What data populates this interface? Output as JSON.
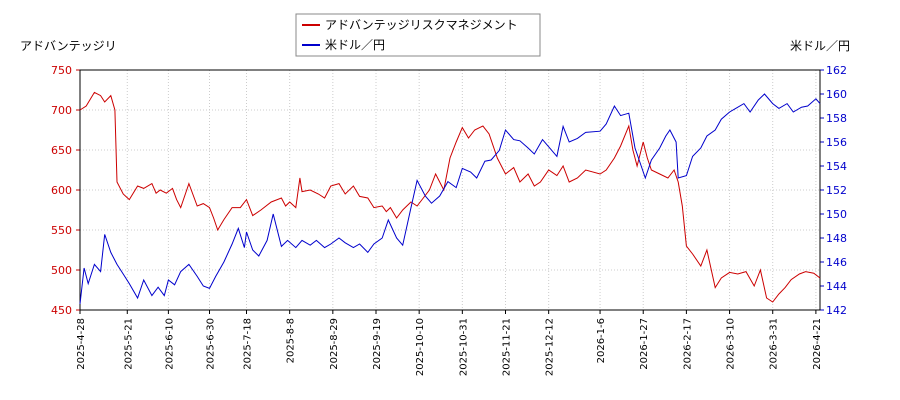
{
  "chart_data": {
    "type": "line",
    "legend": {
      "placement": "top-center",
      "entries": [
        {
          "label": "アドバンテッジリスクマネジメント",
          "color": "#cc0000"
        },
        {
          "label": "米ドル／円",
          "color": "#0000cc"
        }
      ]
    },
    "left_axis": {
      "label": "アドバンテッジリ",
      "ylim": [
        450,
        750
      ],
      "ticks": [
        450,
        500,
        550,
        600,
        650,
        700,
        750
      ],
      "color": "#cc0000"
    },
    "right_axis": {
      "label": "米ドル／円",
      "ylim": [
        142,
        162
      ],
      "ticks": [
        142,
        144,
        146,
        148,
        150,
        152,
        154,
        156,
        158,
        160,
        162
      ],
      "color": "#0000cc"
    },
    "x_axis": {
      "range": [
        "2025-04-28",
        "2026-04-23"
      ],
      "ticks": [
        "2025-4-28",
        "2025-5-21",
        "2025-6-10",
        "2025-6-30",
        "2025-7-18",
        "2025-8-8",
        "2025-8-29",
        "2025-9-19",
        "2025-10-10",
        "2025-10-31",
        "2025-11-21",
        "2025-12-12",
        "2026-1-6",
        "2026-1-27",
        "2026-2-17",
        "2026-3-10",
        "2026-3-31",
        "2026-4-21"
      ]
    },
    "grid": true,
    "series": [
      {
        "name": "アドバンテッジリスクマネジメント",
        "color": "#cc0000",
        "axis": "left",
        "points": [
          [
            "2025-04-28",
            700
          ],
          [
            "2025-05-01",
            705
          ],
          [
            "2025-05-05",
            722
          ],
          [
            "2025-05-08",
            718
          ],
          [
            "2025-05-10",
            710
          ],
          [
            "2025-05-13",
            718
          ],
          [
            "2025-05-15",
            700
          ],
          [
            "2025-05-16",
            610
          ],
          [
            "2025-05-19",
            595
          ],
          [
            "2025-05-22",
            588
          ],
          [
            "2025-05-26",
            605
          ],
          [
            "2025-05-29",
            602
          ],
          [
            "2025-06-02",
            608
          ],
          [
            "2025-06-04",
            596
          ],
          [
            "2025-06-06",
            600
          ],
          [
            "2025-06-09",
            596
          ],
          [
            "2025-06-12",
            602
          ],
          [
            "2025-06-14",
            588
          ],
          [
            "2025-06-16",
            578
          ],
          [
            "2025-06-20",
            608
          ],
          [
            "2025-06-24",
            580
          ],
          [
            "2025-06-27",
            583
          ],
          [
            "2025-06-30",
            578
          ],
          [
            "2025-07-02",
            565
          ],
          [
            "2025-07-04",
            550
          ],
          [
            "2025-07-07",
            563
          ],
          [
            "2025-07-11",
            578
          ],
          [
            "2025-07-15",
            578
          ],
          [
            "2025-07-18",
            588
          ],
          [
            "2025-07-21",
            568
          ],
          [
            "2025-07-25",
            575
          ],
          [
            "2025-07-30",
            585
          ],
          [
            "2025-08-04",
            590
          ],
          [
            "2025-08-06",
            580
          ],
          [
            "2025-08-08",
            585
          ],
          [
            "2025-08-11",
            578
          ],
          [
            "2025-08-13",
            615
          ],
          [
            "2025-08-14",
            598
          ],
          [
            "2025-08-18",
            600
          ],
          [
            "2025-08-22",
            595
          ],
          [
            "2025-08-25",
            590
          ],
          [
            "2025-08-28",
            605
          ],
          [
            "2025-09-01",
            608
          ],
          [
            "2025-09-04",
            595
          ],
          [
            "2025-09-08",
            605
          ],
          [
            "2025-09-11",
            592
          ],
          [
            "2025-09-15",
            590
          ],
          [
            "2025-09-18",
            578
          ],
          [
            "2025-09-22",
            580
          ],
          [
            "2025-09-24",
            573
          ],
          [
            "2025-09-26",
            578
          ],
          [
            "2025-09-29",
            565
          ],
          [
            "2025-10-02",
            575
          ],
          [
            "2025-10-06",
            585
          ],
          [
            "2025-10-09",
            580
          ],
          [
            "2025-10-12",
            590
          ],
          [
            "2025-10-15",
            600
          ],
          [
            "2025-10-18",
            620
          ],
          [
            "2025-10-22",
            600
          ],
          [
            "2025-10-25",
            640
          ],
          [
            "2025-10-28",
            660
          ],
          [
            "2025-10-31",
            678
          ],
          [
            "2025-11-03",
            665
          ],
          [
            "2025-11-06",
            675
          ],
          [
            "2025-11-10",
            680
          ],
          [
            "2025-11-13",
            670
          ],
          [
            "2025-11-17",
            640
          ],
          [
            "2025-11-21",
            620
          ],
          [
            "2025-11-25",
            628
          ],
          [
            "2025-11-28",
            610
          ],
          [
            "2025-12-02",
            620
          ],
          [
            "2025-12-05",
            605
          ],
          [
            "2025-12-08",
            610
          ],
          [
            "2025-12-12",
            625
          ],
          [
            "2025-12-16",
            618
          ],
          [
            "2025-12-19",
            630
          ],
          [
            "2025-12-22",
            610
          ],
          [
            "2025-12-26",
            615
          ],
          [
            "2025-12-30",
            625
          ],
          [
            "2026-01-06",
            620
          ],
          [
            "2026-01-09",
            625
          ],
          [
            "2026-01-13",
            640
          ],
          [
            "2026-01-16",
            655
          ],
          [
            "2026-01-20",
            680
          ],
          [
            "2026-01-22",
            650
          ],
          [
            "2026-01-24",
            630
          ],
          [
            "2026-01-27",
            660
          ],
          [
            "2026-01-29",
            640
          ],
          [
            "2026-01-31",
            625
          ],
          [
            "2026-02-04",
            620
          ],
          [
            "2026-02-08",
            615
          ],
          [
            "2026-02-11",
            625
          ],
          [
            "2026-02-13",
            610
          ],
          [
            "2026-02-15",
            580
          ],
          [
            "2026-02-17",
            530
          ],
          [
            "2026-02-20",
            520
          ],
          [
            "2026-02-24",
            505
          ],
          [
            "2026-02-27",
            525
          ],
          [
            "2026-03-03",
            478
          ],
          [
            "2026-03-06",
            490
          ],
          [
            "2026-03-10",
            497
          ],
          [
            "2026-03-14",
            495
          ],
          [
            "2026-03-18",
            498
          ],
          [
            "2026-03-22",
            480
          ],
          [
            "2026-03-25",
            500
          ],
          [
            "2026-03-28",
            465
          ],
          [
            "2026-03-31",
            460
          ],
          [
            "2026-04-03",
            470
          ],
          [
            "2026-04-06",
            478
          ],
          [
            "2026-04-09",
            488
          ],
          [
            "2026-04-13",
            495
          ],
          [
            "2026-04-16",
            498
          ],
          [
            "2026-04-20",
            496
          ],
          [
            "2026-04-23",
            490
          ]
        ]
      },
      {
        "name": "米ドル／円",
        "color": "#0000cc",
        "axis": "right",
        "points": [
          [
            "2025-04-28",
            142.5
          ],
          [
            "2025-04-30",
            145.5
          ],
          [
            "2025-05-02",
            144.2
          ],
          [
            "2025-05-05",
            145.8
          ],
          [
            "2025-05-08",
            145.2
          ],
          [
            "2025-05-10",
            148.3
          ],
          [
            "2025-05-13",
            146.8
          ],
          [
            "2025-05-16",
            145.8
          ],
          [
            "2025-05-19",
            145.0
          ],
          [
            "2025-05-22",
            144.2
          ],
          [
            "2025-05-26",
            143.0
          ],
          [
            "2025-05-29",
            144.5
          ],
          [
            "2025-06-02",
            143.2
          ],
          [
            "2025-06-05",
            143.9
          ],
          [
            "2025-06-08",
            143.2
          ],
          [
            "2025-06-10",
            144.5
          ],
          [
            "2025-06-13",
            144.1
          ],
          [
            "2025-06-16",
            145.2
          ],
          [
            "2025-06-20",
            145.8
          ],
          [
            "2025-06-24",
            144.8
          ],
          [
            "2025-06-27",
            144.0
          ],
          [
            "2025-06-30",
            143.8
          ],
          [
            "2025-07-03",
            144.8
          ],
          [
            "2025-07-07",
            146.0
          ],
          [
            "2025-07-11",
            147.5
          ],
          [
            "2025-07-14",
            148.8
          ],
          [
            "2025-07-17",
            147.2
          ],
          [
            "2025-07-18",
            148.5
          ],
          [
            "2025-07-21",
            147.0
          ],
          [
            "2025-07-24",
            146.5
          ],
          [
            "2025-07-28",
            147.8
          ],
          [
            "2025-07-31",
            150.0
          ],
          [
            "2025-08-04",
            147.3
          ],
          [
            "2025-08-07",
            147.8
          ],
          [
            "2025-08-11",
            147.2
          ],
          [
            "2025-08-14",
            147.8
          ],
          [
            "2025-08-18",
            147.4
          ],
          [
            "2025-08-21",
            147.8
          ],
          [
            "2025-08-25",
            147.2
          ],
          [
            "2025-08-28",
            147.5
          ],
          [
            "2025-09-01",
            148.0
          ],
          [
            "2025-09-04",
            147.6
          ],
          [
            "2025-09-08",
            147.2
          ],
          [
            "2025-09-11",
            147.5
          ],
          [
            "2025-09-15",
            146.8
          ],
          [
            "2025-09-18",
            147.5
          ],
          [
            "2025-09-22",
            148.0
          ],
          [
            "2025-09-25",
            149.5
          ],
          [
            "2025-09-29",
            148.0
          ],
          [
            "2025-10-02",
            147.4
          ],
          [
            "2025-10-06",
            150.5
          ],
          [
            "2025-10-09",
            152.8
          ],
          [
            "2025-10-13",
            151.5
          ],
          [
            "2025-10-16",
            150.9
          ],
          [
            "2025-10-20",
            151.5
          ],
          [
            "2025-10-24",
            152.7
          ],
          [
            "2025-10-28",
            152.2
          ],
          [
            "2025-10-31",
            153.8
          ],
          [
            "2025-11-04",
            153.5
          ],
          [
            "2025-11-07",
            153.0
          ],
          [
            "2025-11-11",
            154.4
          ],
          [
            "2025-11-14",
            154.5
          ],
          [
            "2025-11-18",
            155.3
          ],
          [
            "2025-11-21",
            157.0
          ],
          [
            "2025-11-25",
            156.2
          ],
          [
            "2025-11-28",
            156.1
          ],
          [
            "2025-12-02",
            155.5
          ],
          [
            "2025-12-05",
            155.0
          ],
          [
            "2025-12-09",
            156.2
          ],
          [
            "2025-12-12",
            155.6
          ],
          [
            "2025-12-16",
            154.8
          ],
          [
            "2025-12-19",
            157.3
          ],
          [
            "2025-12-22",
            156.0
          ],
          [
            "2025-12-26",
            156.3
          ],
          [
            "2025-12-30",
            156.8
          ],
          [
            "2026-01-06",
            156.9
          ],
          [
            "2026-01-09",
            157.5
          ],
          [
            "2026-01-13",
            159.0
          ],
          [
            "2026-01-16",
            158.2
          ],
          [
            "2026-01-20",
            158.4
          ],
          [
            "2026-01-23",
            155.5
          ],
          [
            "2026-01-26",
            154.0
          ],
          [
            "2026-01-28",
            153.0
          ],
          [
            "2026-01-31",
            154.5
          ],
          [
            "2026-02-04",
            155.5
          ],
          [
            "2026-02-07",
            156.5
          ],
          [
            "2026-02-09",
            157.0
          ],
          [
            "2026-02-12",
            156.0
          ],
          [
            "2026-02-13",
            153.0
          ],
          [
            "2026-02-17",
            153.2
          ],
          [
            "2026-02-20",
            154.8
          ],
          [
            "2026-02-24",
            155.5
          ],
          [
            "2026-02-27",
            156.5
          ],
          [
            "2026-03-03",
            157.0
          ],
          [
            "2026-03-06",
            157.9
          ],
          [
            "2026-03-10",
            158.5
          ],
          [
            "2026-03-13",
            158.8
          ],
          [
            "2026-03-17",
            159.2
          ],
          [
            "2026-03-20",
            158.5
          ],
          [
            "2026-03-24",
            159.5
          ],
          [
            "2026-03-27",
            160.0
          ],
          [
            "2026-03-31",
            159.2
          ],
          [
            "2026-04-03",
            158.8
          ],
          [
            "2026-04-07",
            159.2
          ],
          [
            "2026-04-10",
            158.5
          ],
          [
            "2026-04-14",
            158.9
          ],
          [
            "2026-04-17",
            159.0
          ],
          [
            "2026-04-21",
            159.6
          ],
          [
            "2026-04-23",
            159.2
          ]
        ]
      }
    ]
  }
}
